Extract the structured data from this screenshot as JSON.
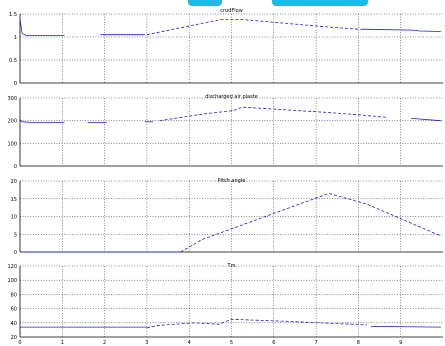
{
  "chart_data": [
    {
      "type": "line",
      "title": "crudFlow",
      "ylim": [
        0,
        1.5
      ],
      "xlim": [
        0,
        10
      ],
      "yticks": [
        0,
        0.5,
        1,
        1.5
      ],
      "yticklabels": [
        "0",
        "0.5",
        "1",
        "1.5"
      ],
      "grid": true,
      "segments": [
        {
          "style": "solid",
          "x": [
            0,
            0.05,
            0.15,
            1.05
          ],
          "y": [
            1.4,
            1.08,
            1.03,
            1.03
          ]
        },
        {
          "style": "solid",
          "x": [
            1.9,
            2.95
          ],
          "y": [
            1.05,
            1.05
          ]
        },
        {
          "style": "dashed",
          "x": [
            3.0,
            4.75,
            5.25,
            7.25,
            8.0
          ],
          "y": [
            1.05,
            1.38,
            1.38,
            1.22,
            1.17
          ]
        },
        {
          "style": "solid",
          "x": [
            8.05,
            9.3,
            9.45,
            9.95
          ],
          "y": [
            1.17,
            1.15,
            1.13,
            1.12
          ]
        }
      ]
    },
    {
      "type": "line",
      "title": "discharged air plaste",
      "ylim": [
        0,
        300
      ],
      "xlim": [
        0,
        10
      ],
      "yticks": [
        0,
        100,
        200,
        300
      ],
      "yticklabels": [
        "0",
        "100",
        "200",
        "300"
      ],
      "grid": true,
      "segments": [
        {
          "style": "solid",
          "x": [
            0,
            0.05,
            0.3,
            1.05
          ],
          "y": [
            205,
            195,
            192,
            192
          ]
        },
        {
          "style": "solid",
          "x": [
            1.6,
            2.05
          ],
          "y": [
            192,
            192
          ]
        },
        {
          "style": "solid",
          "x": [
            2.95,
            3.15
          ],
          "y": [
            195,
            195
          ]
        },
        {
          "style": "dashed",
          "x": [
            3.3,
            4.35,
            5.05,
            5.25,
            7.35,
            8.05,
            8.65
          ],
          "y": [
            200,
            230,
            245,
            260,
            235,
            225,
            215
          ]
        },
        {
          "style": "solid",
          "x": [
            9.25,
            9.95
          ],
          "y": [
            210,
            200
          ]
        }
      ]
    },
    {
      "type": "line",
      "title": "Pitch angle",
      "ylim": [
        0,
        20
      ],
      "xlim": [
        0,
        10
      ],
      "yticks": [
        0,
        5,
        10,
        15,
        20
      ],
      "yticklabels": [
        "0",
        "5",
        "10",
        "15",
        "20"
      ],
      "grid": true,
      "segments": [
        {
          "style": "solid",
          "x": [
            0,
            3.8
          ],
          "y": [
            0,
            0
          ]
        },
        {
          "style": "dashed",
          "x": [
            3.8,
            4.3,
            7.3,
            8.2,
            9.95
          ],
          "y": [
            0,
            3.5,
            16.5,
            13.5,
            4.5
          ]
        }
      ]
    },
    {
      "type": "line",
      "title": "Tm",
      "ylim": [
        20,
        120
      ],
      "xlim": [
        0,
        10
      ],
      "yticks": [
        20,
        40,
        60,
        80,
        100,
        120
      ],
      "yticklabels": [
        "20",
        "40",
        "60",
        "80",
        "100",
        "120"
      ],
      "xticks": [
        0,
        1,
        2,
        3,
        4,
        5,
        6,
        7,
        8,
        9
      ],
      "xticklabels": [
        "0",
        "1",
        "2",
        "3",
        "4",
        "5",
        "6",
        "7",
        "8",
        "9"
      ],
      "grid": true,
      "segments": [
        {
          "style": "solid",
          "x": [
            0,
            3.0
          ],
          "y": [
            34,
            34
          ]
        },
        {
          "style": "dashed",
          "x": [
            3.0,
            3.25,
            4.1,
            4.7,
            5.0,
            6.35,
            8.2
          ],
          "y": [
            33,
            36,
            40,
            38,
            45,
            42,
            37
          ]
        },
        {
          "style": "solid",
          "x": [
            8.3,
            9.95
          ],
          "y": [
            35,
            34
          ]
        }
      ]
    }
  ]
}
